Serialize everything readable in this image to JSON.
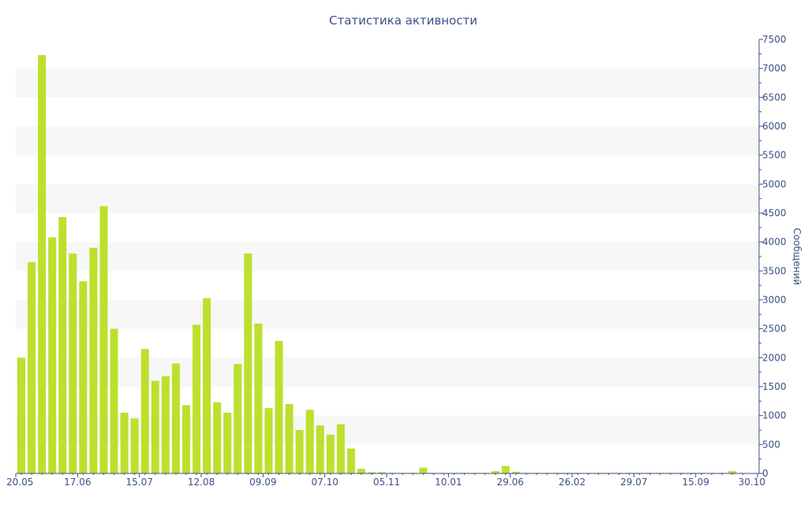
{
  "chart_data": {
    "type": "bar",
    "title": "Статистика активности",
    "ylabel": "Сообщений",
    "ylim": [
      0,
      7500
    ],
    "y_ticks": [
      0,
      500,
      1000,
      1500,
      2000,
      2500,
      3000,
      3500,
      4000,
      4500,
      5000,
      5500,
      6000,
      6500,
      7000,
      7500
    ],
    "y_axis_position": "right",
    "grid": "horizontal alternating bands",
    "x_tick_labels": [
      "20.05",
      "17.06",
      "15.07",
      "12.08",
      "09.09",
      "07.10",
      "05.11",
      "10.01",
      "29.06",
      "26.02",
      "29.07",
      "15.09",
      "30.10"
    ],
    "values": [
      2000,
      3650,
      7230,
      4080,
      4430,
      3800,
      3320,
      3900,
      4620,
      2500,
      1050,
      950,
      2150,
      1600,
      1680,
      1900,
      1180,
      2570,
      3030,
      1230,
      1050,
      1890,
      3800,
      2590,
      1130,
      2290,
      1200,
      750,
      1100,
      830,
      670,
      850,
      430,
      80,
      20,
      20,
      10,
      10,
      10,
      100,
      10,
      10,
      10,
      10,
      10,
      10,
      40,
      130,
      30,
      10,
      10,
      10,
      10,
      10,
      10,
      10,
      10,
      10,
      10,
      10,
      10,
      10,
      10,
      10,
      10,
      10,
      10,
      10,
      10,
      40,
      10
    ],
    "colors": {
      "bar": "#bce02d",
      "axis": "#3e4f85",
      "band": "#f7f7f7"
    }
  }
}
